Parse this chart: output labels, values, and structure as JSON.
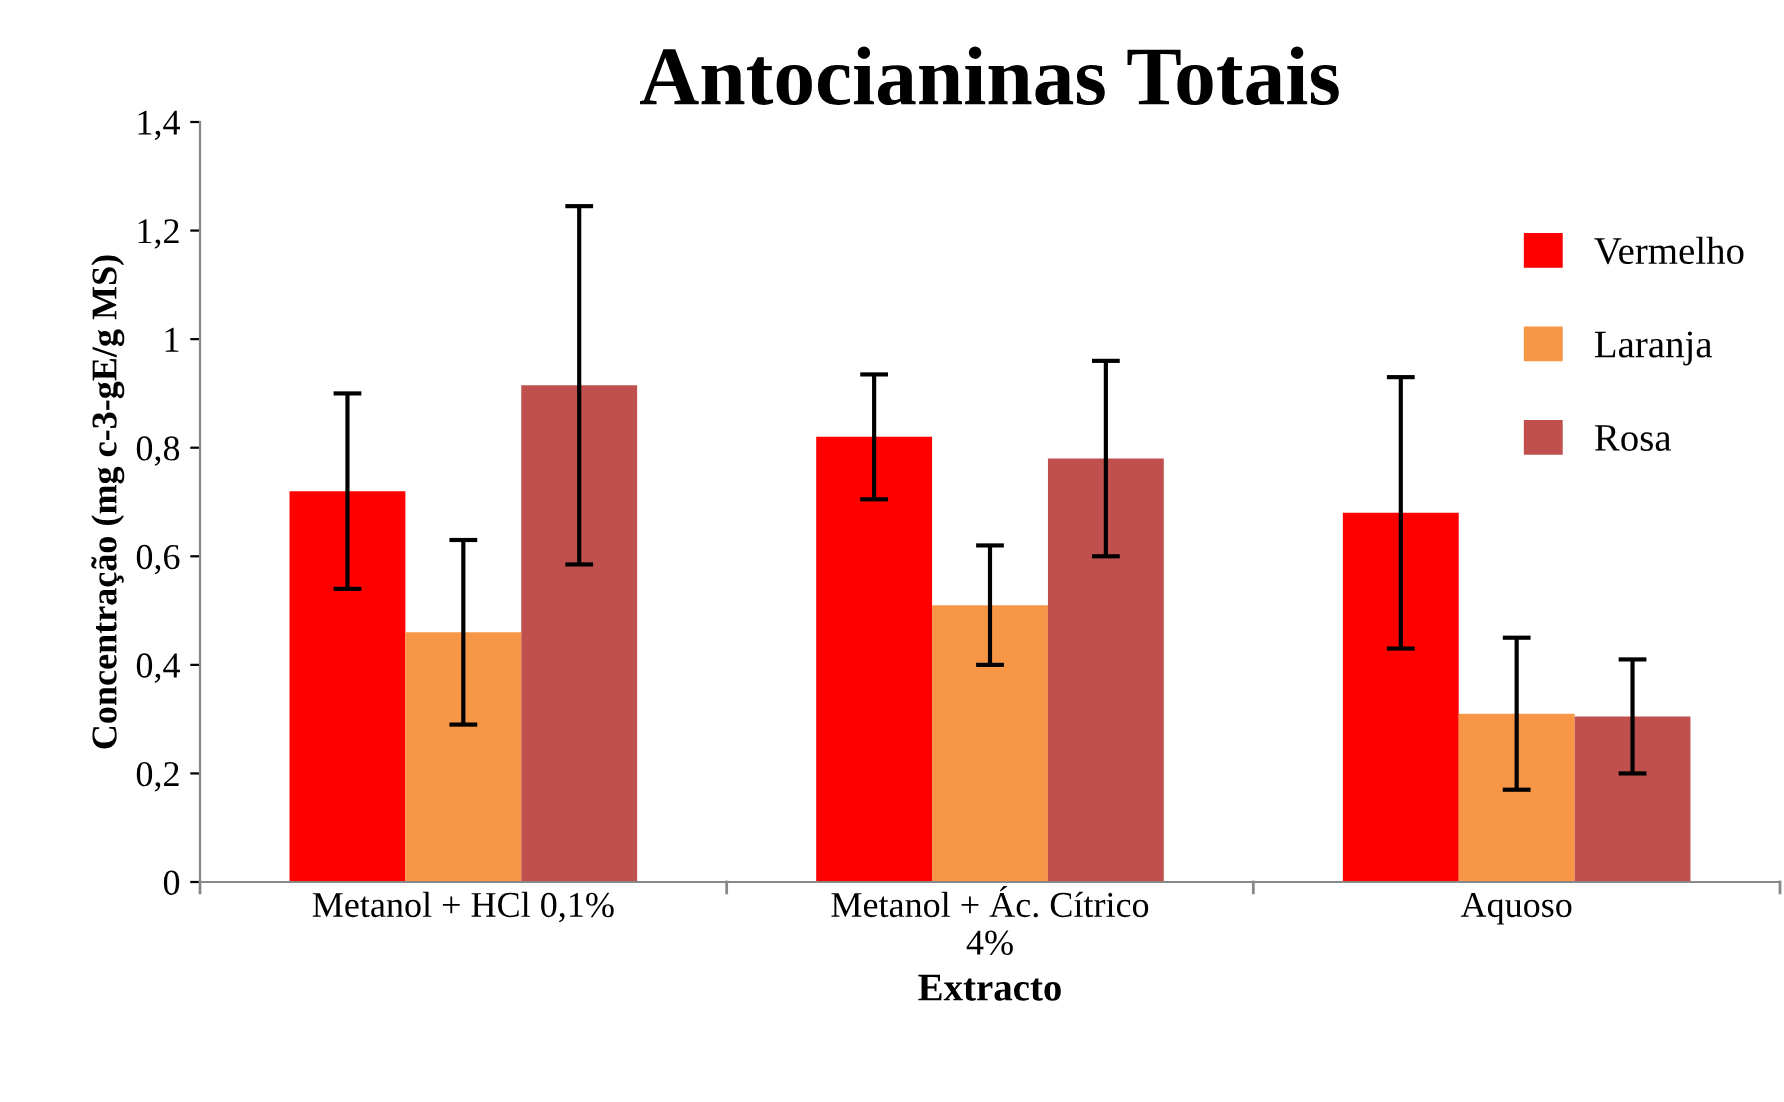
{
  "chart_data": {
    "type": "bar",
    "title": "Antocianinas Totais",
    "xlabel": "Extracto",
    "ylabel": "Concentração (mg c-3-gE/g MS)",
    "categories": [
      "Metanol + HCl 0,1%",
      "Metanol + Ác. Cítrico\n4%",
      "Aquoso"
    ],
    "series": [
      {
        "name": "Vermelho",
        "color": "#ff0000",
        "values": [
          0.72,
          0.82,
          0.68
        ],
        "errors": [
          0.18,
          0.115,
          0.25
        ]
      },
      {
        "name": "Laranja",
        "color": "#f79646",
        "values": [
          0.46,
          0.51,
          0.31
        ],
        "errors": [
          0.17,
          0.11,
          0.14
        ]
      },
      {
        "name": "Rosa",
        "color": "#c0504d",
        "values": [
          0.915,
          0.78,
          0.305
        ],
        "errors": [
          0.33,
          0.18,
          0.105
        ]
      }
    ],
    "ylim": [
      0,
      1.4
    ],
    "yticks": [
      0,
      {
        "value": 0.2,
        "label": "0,2"
      },
      {
        "value": 0.4,
        "label": "0,4"
      },
      {
        "value": 0.6,
        "label": "0,6"
      },
      {
        "value": 0.8,
        "label": "0,8"
      },
      1,
      {
        "value": 1.2,
        "label": "1,2"
      },
      {
        "value": 1.4,
        "label": "1,4"
      }
    ],
    "grid": false,
    "legend": "top right"
  }
}
